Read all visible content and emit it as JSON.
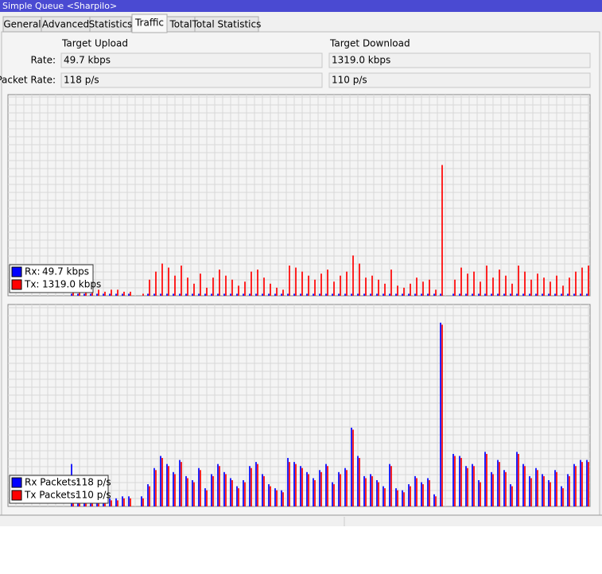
{
  "window_title": "Simple Queue <Sharpilo>",
  "tabs": [
    "General",
    "Advanced",
    "Statistics",
    "Traffic",
    "Total",
    "Total Statistics"
  ],
  "columns": [
    "Target Upload",
    "Target Download"
  ],
  "rows": [
    {
      "label": "Rate:",
      "values": [
        "49.7 kbps",
        "1319.0 kbps"
      ]
    },
    {
      "label": "Packet Rate:",
      "values": [
        "118 p/s",
        "110 p/s"
      ]
    }
  ],
  "graphs": [
    {
      "series": [
        {
          "name": "Rx:",
          "value_label": "49.7 kbps",
          "color": "#0000ff",
          "values": [
            1,
            1,
            1,
            1,
            1,
            1,
            1,
            1,
            1,
            1,
            0,
            0,
            1,
            1,
            1,
            1,
            1,
            1,
            1,
            1,
            1,
            1,
            1,
            1,
            1,
            1,
            1,
            1,
            1,
            1,
            1,
            1,
            1,
            1,
            1,
            1,
            1,
            1,
            1,
            1,
            1,
            1,
            1,
            1,
            1,
            1,
            1,
            1,
            1,
            1,
            1,
            1,
            1,
            1,
            1,
            1,
            1,
            1,
            1,
            0,
            1,
            1,
            1,
            1,
            1,
            1,
            1,
            1,
            1,
            1,
            1,
            1,
            1,
            1,
            1,
            1,
            1,
            1,
            1,
            1,
            1,
            1
          ]
        },
        {
          "name": "Tx:",
          "value_label": "1319.0 kbps",
          "color": "#ff0000",
          "values": [
            3,
            2,
            3,
            4,
            3,
            2,
            3,
            3,
            2,
            2,
            0,
            1,
            8,
            12,
            16,
            14,
            10,
            15,
            9,
            6,
            11,
            4,
            9,
            13,
            10,
            8,
            5,
            7,
            12,
            13,
            9,
            6,
            4,
            3,
            15,
            14,
            12,
            10,
            8,
            11,
            13,
            7,
            10,
            12,
            20,
            16,
            9,
            10,
            8,
            6,
            13,
            5,
            4,
            6,
            9,
            7,
            8,
            3,
            65,
            0,
            8,
            14,
            11,
            12,
            7,
            15,
            9,
            13,
            10,
            6,
            15,
            12,
            8,
            11,
            9,
            7,
            10,
            5,
            9,
            12,
            14,
            15
          ]
        }
      ]
    },
    {
      "series": [
        {
          "name": "Rx Packets:",
          "value_label": "118 p/s",
          "color": "#0000ff",
          "values": [
            21,
            4,
            5,
            4,
            4,
            5,
            4,
            4,
            5,
            5,
            0,
            5,
            11,
            19,
            25,
            21,
            17,
            23,
            15,
            13,
            19,
            9,
            16,
            21,
            17,
            14,
            10,
            13,
            20,
            22,
            16,
            11,
            9,
            8,
            24,
            22,
            20,
            17,
            14,
            18,
            21,
            12,
            17,
            19,
            39,
            25,
            15,
            16,
            13,
            10,
            21,
            9,
            8,
            11,
            15,
            12,
            14,
            6,
            91,
            0,
            26,
            25,
            20,
            21,
            13,
            27,
            17,
            23,
            18,
            11,
            27,
            21,
            15,
            19,
            16,
            13,
            18,
            10,
            16,
            21,
            23,
            23
          ]
        },
        {
          "name": "Tx Packets:",
          "value_label": "110 p/s",
          "color": "#ff0000",
          "values": [
            10,
            3,
            4,
            3,
            3,
            4,
            3,
            3,
            4,
            4,
            0,
            4,
            10,
            18,
            24,
            20,
            16,
            22,
            14,
            12,
            18,
            8,
            15,
            20,
            16,
            13,
            9,
            12,
            19,
            21,
            15,
            10,
            8,
            7,
            22,
            21,
            19,
            16,
            13,
            17,
            20,
            11,
            16,
            18,
            38,
            24,
            14,
            15,
            12,
            9,
            20,
            8,
            7,
            10,
            14,
            11,
            13,
            5,
            90,
            0,
            25,
            24,
            19,
            20,
            12,
            26,
            16,
            22,
            17,
            10,
            26,
            20,
            14,
            18,
            15,
            12,
            17,
            9,
            15,
            20,
            22,
            22
          ]
        }
      ]
    }
  ]
}
